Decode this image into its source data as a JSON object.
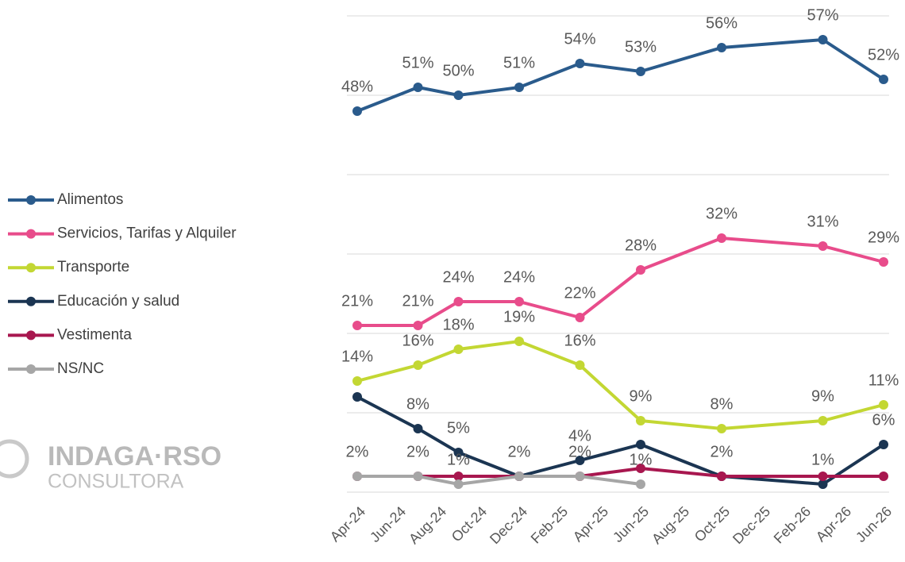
{
  "chart_data": {
    "type": "line",
    "x": [
      "2024-04",
      "2024-07",
      "2024-09",
      "2024-12",
      "2025-03",
      "2025-06",
      "2025-10",
      "2026-03",
      "2026-06"
    ],
    "xlim": [
      "2024-04",
      "2026-06"
    ],
    "xticks": [
      {
        "value": "2024-04",
        "label": "Apr-24"
      },
      {
        "value": "2024-06",
        "label": "Jun-24"
      },
      {
        "value": "2024-08",
        "label": "Aug-24"
      },
      {
        "value": "2024-10",
        "label": "Oct-24"
      },
      {
        "value": "2024-12",
        "label": "Dec-24"
      },
      {
        "value": "2025-02",
        "label": "Feb-25"
      },
      {
        "value": "2025-04",
        "label": "Apr-25"
      },
      {
        "value": "2025-06",
        "label": "Jun-25"
      },
      {
        "value": "2025-08",
        "label": "Aug-25"
      },
      {
        "value": "2025-10",
        "label": "Oct-25"
      },
      {
        "value": "2025-12",
        "label": "Dec-25"
      },
      {
        "value": "2026-02",
        "label": "Feb-26"
      },
      {
        "value": "2026-04",
        "label": "Apr-26"
      },
      {
        "value": "2026-06",
        "label": "Jun-26"
      }
    ],
    "ylim": [
      0,
      60
    ],
    "yticks": [
      0,
      10,
      20,
      30,
      40,
      50,
      60
    ],
    "grid": true,
    "legend": "left",
    "series": [
      {
        "name": "Alimentos",
        "color": "#2a5b8c",
        "values": [
          48,
          51,
          50,
          51,
          54,
          53,
          56,
          57,
          52
        ],
        "value_labels": [
          "48%",
          "51%",
          "50%",
          "51%",
          "54%",
          "53%",
          "56%",
          "57%",
          "52%"
        ]
      },
      {
        "name": "Servicios, Tarifas y Alquiler",
        "color": "#e84c8b",
        "values": [
          21,
          21,
          24,
          24,
          22,
          28,
          32,
          31,
          29
        ],
        "value_labels": [
          "21%",
          "21%",
          "24%",
          "24%",
          "22%",
          "28%",
          "32%",
          "31%",
          "29%"
        ]
      },
      {
        "name": "Transporte",
        "color": "#c3d733",
        "values": [
          14,
          16,
          18,
          19,
          16,
          9,
          8,
          9,
          11
        ],
        "value_labels": [
          "14%",
          "16%",
          "18%",
          "19%",
          "16%",
          "9%",
          "8%",
          "9%",
          "11%"
        ]
      },
      {
        "name": "Educación y salud",
        "color": "#1b3552",
        "values": [
          12,
          8,
          5,
          2,
          4,
          6,
          2,
          1,
          6
        ],
        "value_labels": [
          null,
          "8%",
          "5%",
          "2%",
          "4%",
          null,
          "2%",
          "1%",
          "6%"
        ]
      },
      {
        "name": "Vestimenta",
        "color": "#a8174f",
        "values": [
          2,
          2,
          2,
          2,
          2,
          3,
          2,
          2,
          2
        ],
        "value_labels": [
          "2%",
          "2%",
          null,
          null,
          "2%",
          null,
          null,
          null,
          null
        ]
      },
      {
        "name": "NS/NC",
        "color": "#a6a6a6",
        "values": [
          2,
          2,
          1,
          2,
          2,
          1,
          null,
          null,
          null
        ],
        "value_labels": [
          null,
          null,
          "1%",
          null,
          null,
          "1%",
          null,
          null,
          null
        ]
      }
    ]
  },
  "logo": {
    "name": "INDAGA·RSO",
    "subtitle": "CONSULTORA"
  }
}
